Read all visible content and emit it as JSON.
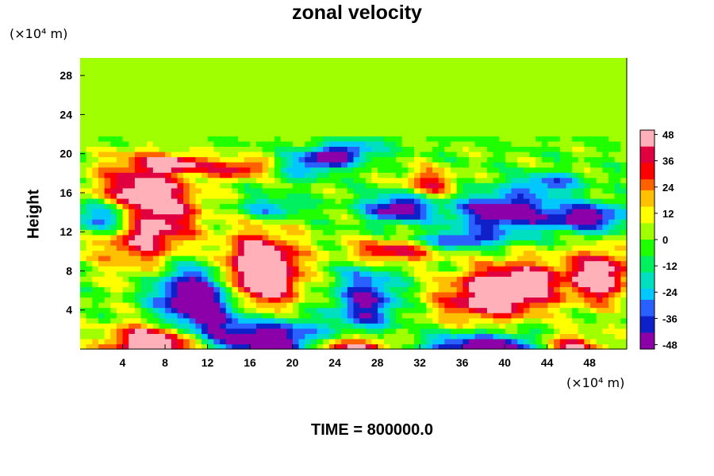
{
  "chart_data": {
    "type": "heatmap",
    "title": "zonal velocity",
    "xlabel": "",
    "ylabel": "Height",
    "x_unit": "(×10⁴ m)",
    "y_unit": "(×10⁴ m)",
    "xlim": [
      0,
      51.5
    ],
    "ylim": [
      0,
      29.8
    ],
    "x_ticks": [
      4,
      8,
      12,
      16,
      20,
      24,
      28,
      32,
      36,
      40,
      44,
      48
    ],
    "y_ticks": [
      4,
      8,
      12,
      16,
      20,
      24,
      28
    ],
    "colorbar": {
      "min": -50,
      "max": 50,
      "ticks": [
        48,
        36,
        24,
        12,
        0,
        -12,
        -24,
        -36,
        -48
      ],
      "colors": [
        "#8b00a8",
        "#1020c8",
        "#2a60ff",
        "#00c8ff",
        "#00e0c0",
        "#00f060",
        "#20ff00",
        "#a0ff00",
        "#ffff00",
        "#ffc000",
        "#ff6000",
        "#ff0000",
        "#e00040",
        "#ffb0b8"
      ]
    },
    "footer": "TIME = 800000.0",
    "color_range": "colorbar"
  }
}
